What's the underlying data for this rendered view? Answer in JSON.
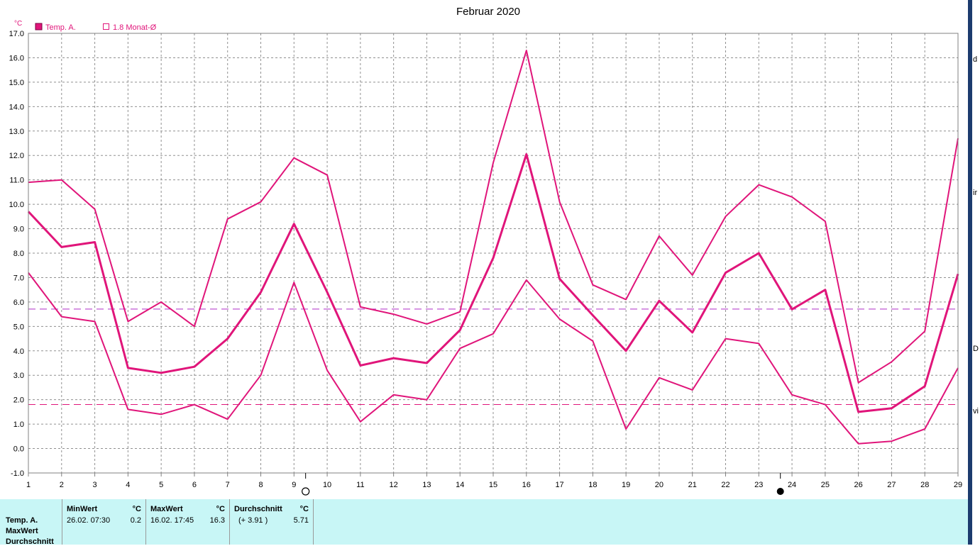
{
  "chart_data": {
    "type": "line",
    "title": "Februar 2020",
    "unit_label": "°C",
    "ylim": [
      -1.0,
      17.0
    ],
    "y_ticks": [
      "-1.0",
      "0.0",
      "1.0",
      "2.0",
      "3.0",
      "4.0",
      "5.0",
      "6.0",
      "7.0",
      "8.0",
      "9.0",
      "10.0",
      "11.0",
      "12.0",
      "13.0",
      "14.0",
      "15.0",
      "16.0",
      "17.0"
    ],
    "x": [
      1,
      2,
      3,
      4,
      5,
      6,
      7,
      8,
      9,
      10,
      11,
      12,
      13,
      14,
      15,
      16,
      17,
      18,
      19,
      20,
      21,
      22,
      23,
      24,
      25,
      26,
      27,
      28,
      29
    ],
    "x_ticks": [
      "1",
      "2",
      "3",
      "4",
      "5",
      "6",
      "7",
      "8",
      "9",
      "10",
      "11",
      "12",
      "13",
      "14",
      "15",
      "16",
      "17",
      "18",
      "19",
      "20",
      "21",
      "22",
      "23",
      "24",
      "25",
      "26",
      "27",
      "28",
      "29"
    ],
    "grid": true,
    "legend_position": "top-left",
    "legend": [
      {
        "label": "Temp. A.",
        "marker": "filled-square"
      },
      {
        "label": "1.8 Monat-Ø",
        "marker": "open-square"
      }
    ],
    "series": [
      {
        "name": "Temp. A.",
        "role": "average",
        "color": "#e0157a",
        "values": [
          9.7,
          8.25,
          8.45,
          3.3,
          3.1,
          3.35,
          4.5,
          6.4,
          9.2,
          6.4,
          3.4,
          3.7,
          3.5,
          4.85,
          7.8,
          12.05,
          6.95,
          5.45,
          4.0,
          6.05,
          4.75,
          7.2,
          8.0,
          5.7,
          6.5,
          1.5,
          1.65,
          2.55,
          7.15
        ]
      },
      {
        "role": "max",
        "color": "#e0157a",
        "values": [
          10.9,
          11.0,
          9.8,
          5.2,
          6.0,
          5.0,
          9.4,
          10.1,
          11.9,
          11.2,
          5.8,
          5.5,
          5.1,
          5.6,
          11.7,
          16.3,
          10.1,
          6.7,
          6.1,
          8.7,
          7.1,
          9.5,
          10.8,
          10.3,
          9.3,
          2.7,
          3.55,
          4.8,
          12.7
        ]
      },
      {
        "role": "min",
        "color": "#e0157a",
        "values": [
          7.2,
          5.4,
          5.2,
          1.6,
          1.4,
          1.8,
          1.2,
          3.0,
          6.8,
          3.2,
          1.1,
          2.2,
          2.0,
          4.1,
          4.7,
          6.9,
          5.3,
          4.4,
          0.8,
          2.9,
          2.4,
          4.5,
          4.3,
          2.2,
          1.8,
          0.2,
          0.3,
          0.8,
          3.3
        ]
      }
    ],
    "reference_lines": [
      {
        "value": 5.71,
        "color": "#b02fc8",
        "style": "dashed"
      },
      {
        "value": 1.8,
        "color": "#e0157a",
        "style": "dashed"
      }
    ],
    "moon_phases": [
      {
        "x": 9.35,
        "phase": "full-moon"
      },
      {
        "x": 23.65,
        "phase": "new-moon"
      }
    ]
  },
  "stats": {
    "row_labels": [
      "Temp. A.",
      "MaxWert",
      "Durchschnitt"
    ],
    "min": {
      "header": "MinWert",
      "unit": "°C",
      "when": "26.02.  07:30",
      "value": "0.2"
    },
    "max": {
      "header": "MaxWert",
      "unit": "°C",
      "when": "16.02.  17:45",
      "value": "16.3"
    },
    "avg": {
      "header": "Durchschnitt",
      "unit": "°C",
      "delta": "(+ 3.91 )",
      "value": "5.71"
    }
  },
  "right_edge": {
    "fragments": [
      "d",
      "ir",
      "D",
      "vi"
    ]
  }
}
